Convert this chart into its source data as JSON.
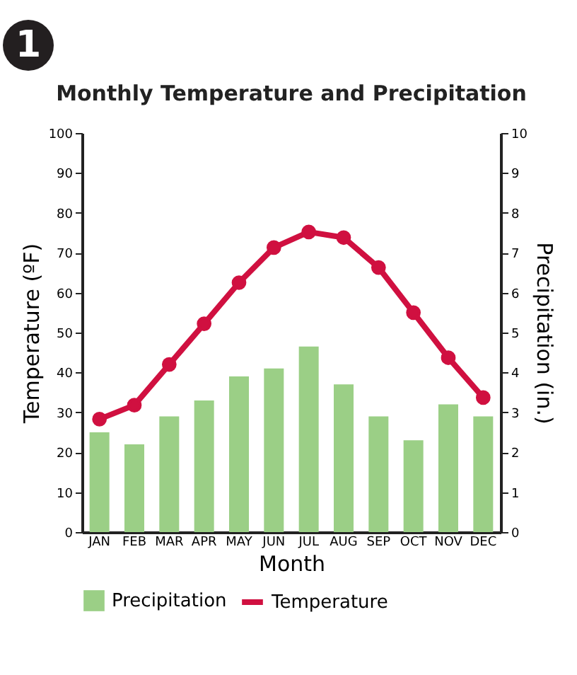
{
  "chart_data": {
    "type": "bar",
    "title": "Monthly Temperature and Precipitation",
    "xlabel": "Month",
    "ylabel": "Temperature (ºF)",
    "y2label": "Precipitation (in.)",
    "annotations": [
      "1"
    ],
    "categories": [
      "JAN",
      "FEB",
      "MAR",
      "APR",
      "MAY",
      "JUN",
      "JUL",
      "AUG",
      "SEP",
      "OCT",
      "NOV",
      "DEC"
    ],
    "series": [
      {
        "name": "Precipitation",
        "axis": "y2",
        "color": "#9bcf86",
        "values": [
          2.5,
          2.2,
          2.9,
          3.3,
          3.9,
          4.1,
          4.65,
          3.7,
          2.9,
          2.3,
          3.2,
          2.9
        ]
      },
      {
        "name": "Temperature",
        "type": "line",
        "color": "#d01040",
        "values": [
          28.3,
          31.8,
          42,
          52.2,
          62.5,
          71.3,
          75.2,
          73.8,
          66.3,
          55,
          43.7,
          33.7
        ]
      }
    ],
    "ylim": [
      0,
      100
    ],
    "yticks": [
      0,
      10,
      20,
      30,
      40,
      50,
      60,
      70,
      80,
      90,
      100
    ],
    "y2lim": [
      0,
      10
    ],
    "y2ticks": [
      0,
      1,
      2,
      3,
      4,
      5,
      6,
      7,
      8,
      9,
      10
    ],
    "legend": "bottom",
    "marker": "circle",
    "line_style": "solid",
    "grid": false
  }
}
